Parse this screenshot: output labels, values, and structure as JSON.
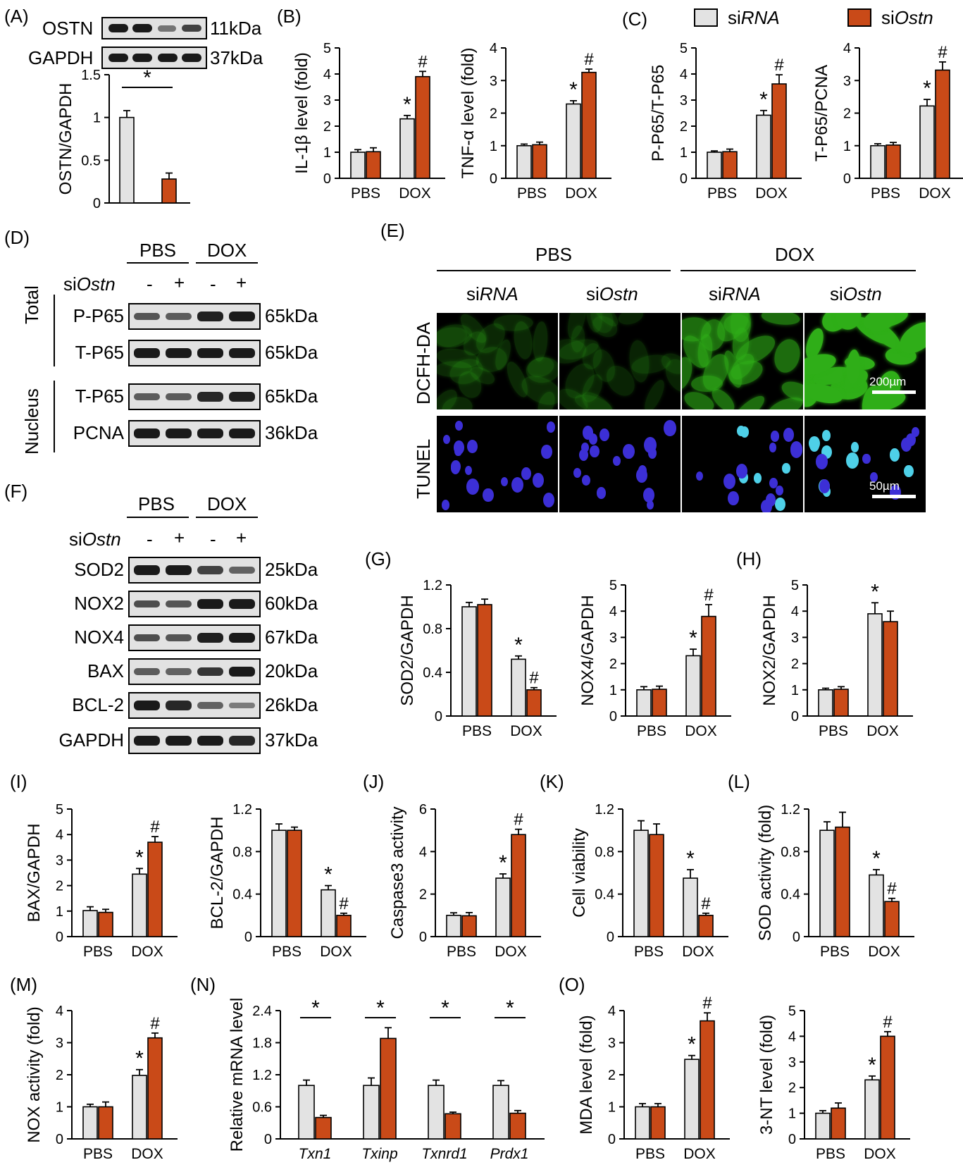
{
  "legend": {
    "control": "siRNA",
    "treated": "siOstn",
    "control_italic": "RNA",
    "treated_italic": "Ostn",
    "prefix": "si"
  },
  "colors": {
    "control": "#e3e3e3",
    "treated": "#c94a18",
    "fluor_dcfh": "#2fae18",
    "fluor_dapi": "#3c2fd6",
    "fluor_tunel": "#4ed0e8"
  },
  "panel_letters": [
    "(A)",
    "(B)",
    "(C)",
    "(D)",
    "(E)",
    "(F)",
    "(G)",
    "(H)",
    "(I)",
    "(J)",
    "(K)",
    "(L)",
    "(M)",
    "(N)",
    "(O)"
  ],
  "blot_A": {
    "rows": [
      {
        "protein": "OSTN",
        "kda": "11kDa"
      },
      {
        "protein": "GAPDH",
        "kda": "37kDa"
      }
    ]
  },
  "blot_D": {
    "group_labels": [
      "PBS",
      "DOX"
    ],
    "sirna_label": "siOstn",
    "lane_signs": [
      "-",
      "+",
      "-",
      "+"
    ],
    "sections": [
      "Total",
      "Nucleus"
    ],
    "rows": [
      {
        "protein": "P-P65",
        "kda": "65kDa",
        "intensity": [
          0.55,
          0.5,
          0.95,
          1.0
        ]
      },
      {
        "protein": "T-P65",
        "kda": "65kDa",
        "intensity": [
          1.0,
          1.0,
          1.0,
          1.0
        ]
      },
      {
        "protein": "T-P65",
        "kda": "65kDa",
        "intensity": [
          0.5,
          0.5,
          0.9,
          0.95
        ]
      },
      {
        "protein": "PCNA",
        "kda": "36kDa",
        "intensity": [
          1.0,
          1.0,
          1.0,
          1.0
        ]
      }
    ]
  },
  "blot_F": {
    "group_labels": [
      "PBS",
      "DOX"
    ],
    "sirna_label": "siOstn",
    "lane_signs": [
      "-",
      "+",
      "-",
      "+"
    ],
    "rows": [
      {
        "protein": "SOD2",
        "kda": "25kDa",
        "intensity": [
          1.0,
          1.0,
          0.7,
          0.45
        ]
      },
      {
        "protein": "NOX2",
        "kda": "60kDa",
        "intensity": [
          0.6,
          0.55,
          1.0,
          1.0
        ]
      },
      {
        "protein": "NOX4",
        "kda": "67kDa",
        "intensity": [
          0.6,
          0.55,
          0.95,
          1.0
        ]
      },
      {
        "protein": "BAX",
        "kda": "20kDa",
        "intensity": [
          0.5,
          0.45,
          0.8,
          1.0
        ]
      },
      {
        "protein": "BCL-2",
        "kda": "26kDa",
        "intensity": [
          1.0,
          0.9,
          0.45,
          0.25
        ]
      },
      {
        "protein": "GAPDH",
        "kda": "37kDa",
        "intensity": [
          1.0,
          1.0,
          1.0,
          0.9
        ]
      }
    ]
  },
  "panel_E": {
    "groups": [
      "PBS",
      "DOX"
    ],
    "columns": [
      "siRNA",
      "siOstn",
      "siRNA",
      "siOstn"
    ],
    "rows": [
      "DCFH-DA",
      "TUNEL"
    ],
    "scale_bars": [
      "200µm",
      "50µm"
    ],
    "dcfh_intensity": [
      0.1,
      0.06,
      0.55,
      1.0
    ],
    "tunel_positive_counts": [
      0,
      0,
      6,
      10
    ]
  },
  "chart_data": [
    {
      "id": "A",
      "type": "bar",
      "ylabel": "OSTN/GAPDH",
      "ylim": [
        0,
        1.5
      ],
      "yticks": [
        "0",
        "0.5",
        "1",
        "1.5"
      ],
      "categories": [
        ""
      ],
      "series": [
        {
          "values": [
            1.0
          ],
          "errors": [
            0.08
          ]
        },
        {
          "values": [
            0.28
          ],
          "errors": [
            0.07
          ]
        }
      ],
      "marks": [
        {
          "sym": "*",
          "type": "bracket"
        }
      ]
    },
    {
      "id": "B1",
      "type": "bar",
      "ylabel": "IL-1β level (fold)",
      "ylim": [
        0,
        5
      ],
      "yticks": [
        "0",
        "1",
        "2",
        "3",
        "4",
        "5"
      ],
      "categories": [
        "PBS",
        "DOX"
      ],
      "series": [
        {
          "values": [
            1.0,
            2.28
          ],
          "errors": [
            0.1,
            0.13
          ]
        },
        {
          "values": [
            1.02,
            3.9
          ],
          "errors": [
            0.15,
            0.2
          ]
        }
      ],
      "marks": [
        {
          "sym": "*",
          "cat": 1,
          "s": 0
        },
        {
          "sym": "#",
          "cat": 1,
          "s": 1
        }
      ]
    },
    {
      "id": "B2",
      "type": "bar",
      "ylabel": "TNF-α level (fold)",
      "ylim": [
        0,
        4
      ],
      "yticks": [
        "0",
        "1",
        "2",
        "3",
        "4"
      ],
      "categories": [
        "PBS",
        "DOX"
      ],
      "series": [
        {
          "values": [
            1.0,
            2.28
          ],
          "errors": [
            0.05,
            0.1
          ]
        },
        {
          "values": [
            1.03,
            3.25
          ],
          "errors": [
            0.08,
            0.1
          ]
        }
      ],
      "marks": [
        {
          "sym": "*",
          "cat": 1,
          "s": 0
        },
        {
          "sym": "#",
          "cat": 1,
          "s": 1
        }
      ]
    },
    {
      "id": "C1",
      "type": "bar",
      "ylabel": "P-P65/T-P65",
      "ylim": [
        0,
        5
      ],
      "yticks": [
        "0",
        "1",
        "2",
        "3",
        "4",
        "5"
      ],
      "categories": [
        "PBS",
        "DOX"
      ],
      "series": [
        {
          "values": [
            1.0,
            2.42
          ],
          "errors": [
            0.05,
            0.18
          ]
        },
        {
          "values": [
            1.02,
            3.62
          ],
          "errors": [
            0.1,
            0.35
          ]
        }
      ],
      "marks": [
        {
          "sym": "*",
          "cat": 1,
          "s": 0
        },
        {
          "sym": "#",
          "cat": 1,
          "s": 1
        }
      ]
    },
    {
      "id": "C2",
      "type": "bar",
      "ylabel": "T-P65/PCNA",
      "ylim": [
        0,
        4
      ],
      "yticks": [
        "0",
        "1",
        "2",
        "3",
        "4"
      ],
      "categories": [
        "PBS",
        "DOX"
      ],
      "series": [
        {
          "values": [
            1.0,
            2.22
          ],
          "errors": [
            0.06,
            0.2
          ]
        },
        {
          "values": [
            1.02,
            3.32
          ],
          "errors": [
            0.08,
            0.25
          ]
        }
      ],
      "marks": [
        {
          "sym": "*",
          "cat": 1,
          "s": 0
        },
        {
          "sym": "#",
          "cat": 1,
          "s": 1
        }
      ]
    },
    {
      "id": "G1",
      "type": "bar",
      "ylabel": "SOD2/GAPDH",
      "ylim": [
        0,
        1.2
      ],
      "yticks": [
        "0",
        "0.4",
        "0.8",
        "1.2"
      ],
      "categories": [
        "PBS",
        "DOX"
      ],
      "series": [
        {
          "values": [
            1.0,
            0.52
          ],
          "errors": [
            0.04,
            0.03
          ]
        },
        {
          "values": [
            1.02,
            0.24
          ],
          "errors": [
            0.05,
            0.02
          ]
        }
      ],
      "marks": [
        {
          "sym": "*",
          "cat": 1,
          "s": 0
        },
        {
          "sym": "#",
          "cat": 1,
          "s": 1
        }
      ]
    },
    {
      "id": "G2",
      "type": "bar",
      "ylabel": "NOX4/GAPDH",
      "ylim": [
        0,
        5
      ],
      "yticks": [
        "0",
        "1",
        "2",
        "3",
        "4",
        "5"
      ],
      "categories": [
        "PBS",
        "DOX"
      ],
      "series": [
        {
          "values": [
            1.0,
            2.3
          ],
          "errors": [
            0.12,
            0.25
          ]
        },
        {
          "values": [
            1.02,
            3.8
          ],
          "errors": [
            0.12,
            0.45
          ]
        }
      ],
      "marks": [
        {
          "sym": "*",
          "cat": 1,
          "s": 0
        },
        {
          "sym": "#",
          "cat": 1,
          "s": 1
        }
      ]
    },
    {
      "id": "H",
      "type": "bar",
      "ylabel": "NOX2/GAPDH",
      "ylim": [
        0,
        5
      ],
      "yticks": [
        "0",
        "1",
        "2",
        "3",
        "4",
        "5"
      ],
      "categories": [
        "PBS",
        "DOX"
      ],
      "series": [
        {
          "values": [
            1.0,
            3.9
          ],
          "errors": [
            0.06,
            0.42
          ]
        },
        {
          "values": [
            1.02,
            3.6
          ],
          "errors": [
            0.1,
            0.4
          ]
        }
      ],
      "marks": [
        {
          "sym": "*",
          "cat": 1,
          "s": 0
        }
      ]
    },
    {
      "id": "I1",
      "type": "bar",
      "ylabel": "BAX/GAPDH",
      "ylim": [
        0,
        5
      ],
      "yticks": [
        "0",
        "1",
        "2",
        "3",
        "4",
        "5"
      ],
      "categories": [
        "PBS",
        "DOX"
      ],
      "series": [
        {
          "values": [
            1.02,
            2.45
          ],
          "errors": [
            0.15,
            0.22
          ]
        },
        {
          "values": [
            0.95,
            3.7
          ],
          "errors": [
            0.12,
            0.22
          ]
        }
      ],
      "marks": [
        {
          "sym": "*",
          "cat": 1,
          "s": 0
        },
        {
          "sym": "#",
          "cat": 1,
          "s": 1
        }
      ]
    },
    {
      "id": "I2",
      "type": "bar",
      "ylabel": "BCL-2/GAPDH",
      "ylim": [
        0,
        1.2
      ],
      "yticks": [
        "0",
        "0.4",
        "0.8",
        "1.2"
      ],
      "categories": [
        "PBS",
        "DOX"
      ],
      "series": [
        {
          "values": [
            1.0,
            0.44
          ],
          "errors": [
            0.06,
            0.04
          ]
        },
        {
          "values": [
            1.0,
            0.2
          ],
          "errors": [
            0.03,
            0.02
          ]
        }
      ],
      "marks": [
        {
          "sym": "*",
          "cat": 1,
          "s": 0
        },
        {
          "sym": "#",
          "cat": 1,
          "s": 1
        }
      ]
    },
    {
      "id": "J",
      "type": "bar",
      "ylabel": "Caspase3 activity",
      "ylim": [
        0,
        6
      ],
      "yticks": [
        "0",
        "2",
        "4",
        "6"
      ],
      "categories": [
        "PBS",
        "DOX"
      ],
      "series": [
        {
          "values": [
            1.0,
            2.75
          ],
          "errors": [
            0.12,
            0.2
          ]
        },
        {
          "values": [
            0.98,
            4.8
          ],
          "errors": [
            0.15,
            0.25
          ]
        }
      ],
      "marks": [
        {
          "sym": "*",
          "cat": 1,
          "s": 0
        },
        {
          "sym": "#",
          "cat": 1,
          "s": 1
        }
      ]
    },
    {
      "id": "K",
      "type": "bar",
      "ylabel": "Cell viability",
      "ylim": [
        0,
        1.2
      ],
      "yticks": [
        "0",
        "0.4",
        "0.8",
        "1.2"
      ],
      "categories": [
        "PBS",
        "DOX"
      ],
      "series": [
        {
          "values": [
            1.0,
            0.55
          ],
          "errors": [
            0.09,
            0.08
          ]
        },
        {
          "values": [
            0.96,
            0.2
          ],
          "errors": [
            0.1,
            0.02
          ]
        }
      ],
      "marks": [
        {
          "sym": "*",
          "cat": 1,
          "s": 0
        },
        {
          "sym": "#",
          "cat": 1,
          "s": 1
        }
      ]
    },
    {
      "id": "L",
      "type": "bar",
      "ylabel": "SOD activity (fold)",
      "ylim": [
        0,
        1.2
      ],
      "yticks": [
        "0",
        "0.4",
        "0.8",
        "1.2"
      ],
      "categories": [
        "PBS",
        "DOX"
      ],
      "series": [
        {
          "values": [
            1.0,
            0.58
          ],
          "errors": [
            0.08,
            0.05
          ]
        },
        {
          "values": [
            1.03,
            0.33
          ],
          "errors": [
            0.14,
            0.03
          ]
        }
      ],
      "marks": [
        {
          "sym": "*",
          "cat": 1,
          "s": 0
        },
        {
          "sym": "#",
          "cat": 1,
          "s": 1
        }
      ]
    },
    {
      "id": "M",
      "type": "bar",
      "ylabel": "NOX activity (fold)",
      "ylim": [
        0,
        4
      ],
      "yticks": [
        "0",
        "1",
        "2",
        "3",
        "4"
      ],
      "categories": [
        "PBS",
        "DOX"
      ],
      "series": [
        {
          "values": [
            1.0,
            1.98
          ],
          "errors": [
            0.08,
            0.18
          ]
        },
        {
          "values": [
            1.0,
            3.15
          ],
          "errors": [
            0.15,
            0.15
          ]
        }
      ],
      "marks": [
        {
          "sym": "*",
          "cat": 1,
          "s": 0
        },
        {
          "sym": "#",
          "cat": 1,
          "s": 1
        }
      ]
    },
    {
      "id": "N",
      "type": "bar",
      "ylabel": "Relative mRNA level",
      "ylim": [
        0,
        2.4
      ],
      "yticks": [
        "0",
        "0.6",
        "1.2",
        "1.8",
        "2.4"
      ],
      "categories": [
        "Txn1",
        "Txinp",
        "Txnrd1",
        "Prdx1"
      ],
      "italic_categories": true,
      "series": [
        {
          "values": [
            1.0,
            1.0,
            1.0,
            1.0
          ],
          "errors": [
            0.1,
            0.14,
            0.1,
            0.09
          ]
        },
        {
          "values": [
            0.4,
            1.88,
            0.47,
            0.48
          ],
          "errors": [
            0.04,
            0.2,
            0.03,
            0.05
          ]
        }
      ],
      "marks": [
        {
          "sym": "*",
          "type": "bracket",
          "cat": 0
        },
        {
          "sym": "*",
          "type": "bracket",
          "cat": 1
        },
        {
          "sym": "*",
          "type": "bracket",
          "cat": 2
        },
        {
          "sym": "*",
          "type": "bracket",
          "cat": 3
        }
      ]
    },
    {
      "id": "O1",
      "type": "bar",
      "ylabel": "MDA level (fold)",
      "ylim": [
        0,
        4
      ],
      "yticks": [
        "0",
        "1",
        "2",
        "3",
        "4"
      ],
      "categories": [
        "PBS",
        "DOX"
      ],
      "series": [
        {
          "values": [
            1.0,
            2.48
          ],
          "errors": [
            0.1,
            0.12
          ]
        },
        {
          "values": [
            1.0,
            3.68
          ],
          "errors": [
            0.1,
            0.25
          ]
        }
      ],
      "marks": [
        {
          "sym": "*",
          "cat": 1,
          "s": 0
        },
        {
          "sym": "#",
          "cat": 1,
          "s": 1
        }
      ]
    },
    {
      "id": "O2",
      "type": "bar",
      "ylabel": "3-NT level (fold)",
      "ylim": [
        0,
        5
      ],
      "yticks": [
        "0",
        "1",
        "2",
        "3",
        "4",
        "5"
      ],
      "categories": [
        "PBS",
        "DOX"
      ],
      "series": [
        {
          "values": [
            1.0,
            2.3
          ],
          "errors": [
            0.1,
            0.15
          ]
        },
        {
          "values": [
            1.2,
            4.0
          ],
          "errors": [
            0.2,
            0.18
          ]
        }
      ],
      "marks": [
        {
          "sym": "*",
          "cat": 1,
          "s": 0
        },
        {
          "sym": "#",
          "cat": 1,
          "s": 1
        }
      ]
    }
  ]
}
